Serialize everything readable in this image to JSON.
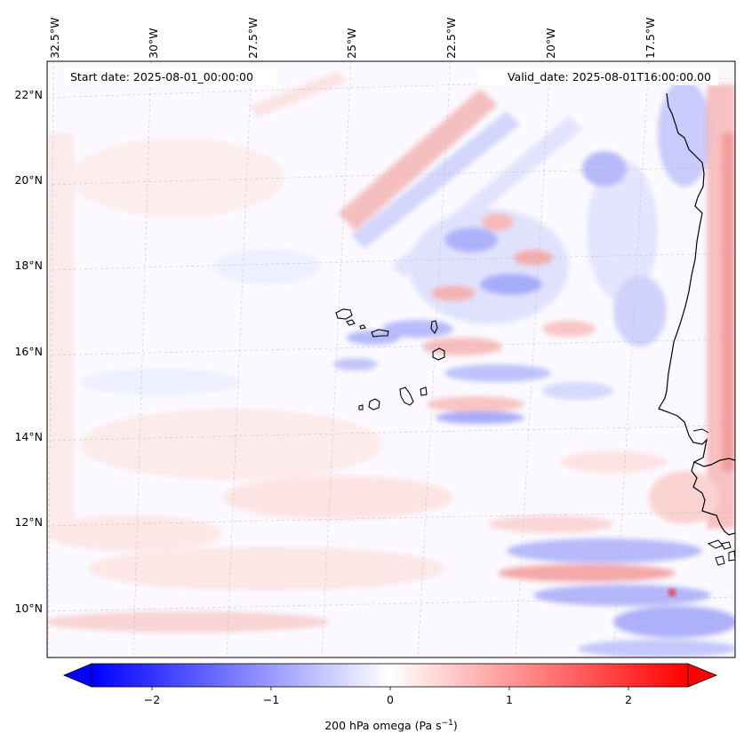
{
  "header": {
    "start_date": "Start date: 2025-08-01_00:00:00",
    "valid_date": "Valid_date: 2025-08-01T16:00:00.00"
  },
  "map": {
    "projection": "lambert-conformal",
    "lon_labels": [
      "32.5°W",
      "30°W",
      "27.5°W",
      "25°W",
      "22.5°W",
      "20°W",
      "17.5°W"
    ],
    "lat_labels": [
      "22°N",
      "20°N",
      "18°N",
      "16°N",
      "14°N",
      "12°N",
      "10°N"
    ],
    "gridlines": true,
    "field": "200 hPa omega",
    "colormap": "bwr",
    "features": [
      "Cape Verde islands",
      "West African coastline"
    ]
  },
  "colorbar": {
    "ticks": [
      "−2",
      "−1",
      "0",
      "1",
      "2"
    ],
    "label": "200 hPa omega (Pa s",
    "label_sup": "−1",
    "label_end": ")",
    "vmin": -2.7,
    "vmax": 2.7,
    "extend": "both",
    "colors": {
      "min": "#0000ff",
      "mid": "#ffffff",
      "max": "#ff0000"
    }
  }
}
